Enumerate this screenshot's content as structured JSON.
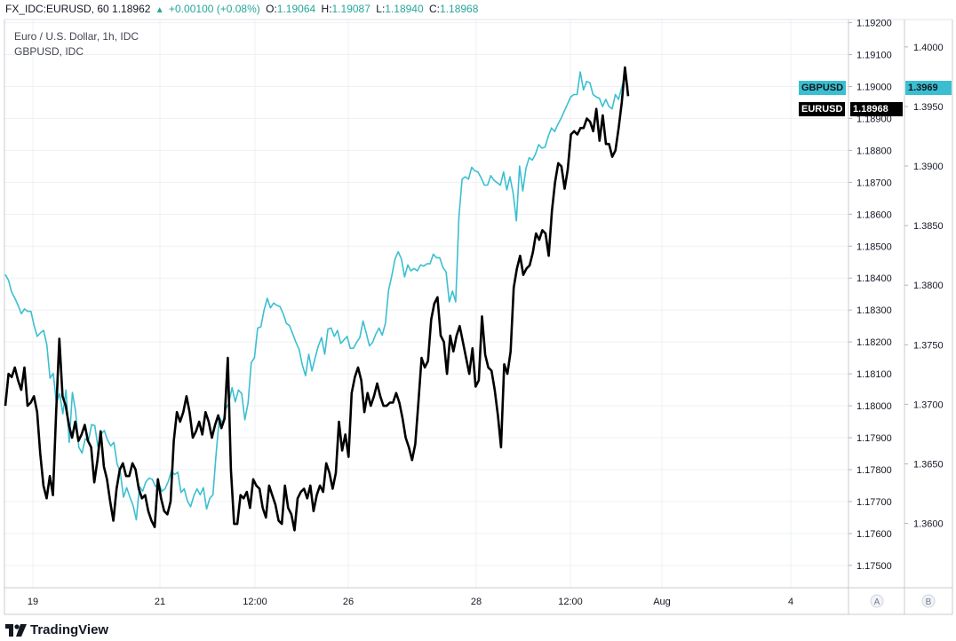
{
  "header": {
    "symbol": "FX_IDC:EURUSD, 60",
    "last": "1.18962",
    "change": "+0.00100 (+0.08%)",
    "open_label": "O:",
    "open": "1.19064",
    "high_label": "H:",
    "high": "1.19087",
    "low_label": "L:",
    "low": "1.18940",
    "close_label": "C:",
    "close": "1.18968"
  },
  "legend": {
    "main": "Euro / U.S. Dollar, 1h, IDC",
    "compare": "GBPUSD, IDC"
  },
  "tags": {
    "gbp_name": "GBPUSD",
    "gbp_value": "1.3969",
    "eur_name": "EURUSD",
    "eur_value": "1.18968"
  },
  "axis_buttons": {
    "a": "A",
    "b": "B"
  },
  "footer": {
    "brand": "TradingView"
  },
  "colors": {
    "eurusd": "#000000",
    "gbpusd": "#3bbfd0",
    "up": "#26a69a",
    "grid": "#eef0f3"
  },
  "chart_data": {
    "type": "line",
    "x_ticks": [
      "19",
      "21",
      "12:00",
      "26",
      "28",
      "12:00",
      "Aug",
      "4"
    ],
    "y_axis_left": {
      "series": "EURUSD",
      "ticks": [
        "1.19200",
        "1.19100",
        "1.19000",
        "1.18900",
        "1.18800",
        "1.18700",
        "1.18600",
        "1.18500",
        "1.18400",
        "1.18300",
        "1.18200",
        "1.18100",
        "1.18000",
        "1.17900",
        "1.17800",
        "1.17700",
        "1.17600",
        "1.17500"
      ],
      "range": [
        1.1743,
        1.1921
      ]
    },
    "y_axis_right": {
      "series": "GBPUSD",
      "ticks": [
        "1.4000",
        "1.3950",
        "1.3900",
        "1.3850",
        "1.3800",
        "1.3750",
        "1.3700",
        "1.3650",
        "1.3600"
      ],
      "range": [
        1.3546,
        1.4023
      ]
    },
    "series": [
      {
        "name": "EURUSD",
        "axis": "left",
        "color": "#000000",
        "last": 1.18968,
        "values": [
          1.18,
          1.181,
          1.1809,
          1.1812,
          1.1808,
          1.1805,
          1.1812,
          1.18,
          1.1801,
          1.1803,
          1.1798,
          1.1785,
          1.1775,
          1.1771,
          1.1778,
          1.1772,
          1.1798,
          1.1821,
          1.1803,
          1.18,
          1.1794,
          1.179,
          1.1795,
          1.1789,
          1.1791,
          1.1794,
          1.1789,
          1.1787,
          1.1776,
          1.1783,
          1.1792,
          1.1781,
          1.1777,
          1.177,
          1.1764,
          1.1774,
          1.178,
          1.1782,
          1.1778,
          1.1778,
          1.1782,
          1.178,
          1.1774,
          1.1771,
          1.1772,
          1.1767,
          1.1764,
          1.1762,
          1.1777,
          1.1771,
          1.1767,
          1.1766,
          1.177,
          1.1789,
          1.1798,
          1.1795,
          1.1798,
          1.1803,
          1.1798,
          1.179,
          1.1792,
          1.1795,
          1.1791,
          1.1798,
          1.1795,
          1.179,
          1.1794,
          1.1797,
          1.1793,
          1.1796,
          1.1815,
          1.178,
          1.1763,
          1.1763,
          1.1772,
          1.1771,
          1.1773,
          1.1768,
          1.1777,
          1.1775,
          1.1774,
          1.1768,
          1.1765,
          1.1775,
          1.1772,
          1.1769,
          1.1764,
          1.1763,
          1.1775,
          1.1768,
          1.1766,
          1.1761,
          1.1771,
          1.1773,
          1.1774,
          1.1771,
          1.1775,
          1.1767,
          1.1772,
          1.1775,
          1.1773,
          1.1782,
          1.1779,
          1.1774,
          1.1779,
          1.1795,
          1.1786,
          1.1791,
          1.1784,
          1.1804,
          1.1809,
          1.1812,
          1.1808,
          1.1798,
          1.1804,
          1.18,
          1.1803,
          1.1807,
          1.1803,
          1.18,
          1.18,
          1.1801,
          1.1801,
          1.1804,
          1.1801,
          1.1796,
          1.179,
          1.1787,
          1.1783,
          1.1788,
          1.1801,
          1.1815,
          1.1812,
          1.1814,
          1.1827,
          1.1832,
          1.1834,
          1.1822,
          1.182,
          1.181,
          1.1822,
          1.1817,
          1.1822,
          1.1825,
          1.182,
          1.1815,
          1.181,
          1.1818,
          1.1806,
          1.1808,
          1.1828,
          1.1816,
          1.1812,
          1.1811,
          1.1805,
          1.1797,
          1.1787,
          1.1813,
          1.181,
          1.1817,
          1.1837,
          1.1843,
          1.1847,
          1.1841,
          1.1843,
          1.1844,
          1.1848,
          1.1854,
          1.1852,
          1.1855,
          1.1854,
          1.1847,
          1.1861,
          1.187,
          1.1876,
          1.1875,
          1.1868,
          1.1874,
          1.1885,
          1.1886,
          1.1885,
          1.1887,
          1.1887,
          1.189,
          1.1889,
          1.1886,
          1.1893,
          1.1883,
          1.1891,
          1.1882,
          1.1882,
          1.1878,
          1.188,
          1.1887,
          1.1895,
          1.1906,
          1.1897
        ]
      },
      {
        "name": "GBPUSD",
        "axis": "right",
        "color": "#3bbfd0",
        "last": 1.3969,
        "values": [
          1.3809,
          1.3804,
          1.3794,
          1.3789,
          1.3783,
          1.3776,
          1.378,
          1.3778,
          1.3778,
          1.3766,
          1.3757,
          1.376,
          1.3762,
          1.375,
          1.3722,
          1.3726,
          1.3701,
          1.3709,
          1.3692,
          1.3712,
          1.3668,
          1.371,
          1.3694,
          1.3664,
          1.3659,
          1.3671,
          1.3669,
          1.3683,
          1.3682,
          1.3664,
          1.3675,
          1.3678,
          1.367,
          1.3665,
          1.3668,
          1.365,
          1.3643,
          1.3622,
          1.363,
          1.3622,
          1.3615,
          1.3603,
          1.3631,
          1.3627,
          1.3635,
          1.3638,
          1.3637,
          1.3631,
          1.3634,
          1.3627,
          1.3629,
          1.3635,
          1.3644,
          1.3641,
          1.3643,
          1.3626,
          1.3629,
          1.3619,
          1.3614,
          1.3623,
          1.3629,
          1.3624,
          1.363,
          1.3612,
          1.3621,
          1.3624,
          1.3659,
          1.3689,
          1.3684,
          1.3696,
          1.3701,
          1.3714,
          1.3702,
          1.3712,
          1.3709,
          1.3687,
          1.3701,
          1.3735,
          1.3739,
          1.3764,
          1.3765,
          1.3779,
          1.3789,
          1.3781,
          1.3785,
          1.3783,
          1.3782,
          1.3776,
          1.3768,
          1.3766,
          1.3759,
          1.3752,
          1.3746,
          1.3733,
          1.3724,
          1.3742,
          1.3728,
          1.3739,
          1.3749,
          1.3756,
          1.3742,
          1.3763,
          1.3764,
          1.3757,
          1.3762,
          1.3751,
          1.3754,
          1.3757,
          1.3747,
          1.3747,
          1.3752,
          1.3756,
          1.377,
          1.376,
          1.3749,
          1.3752,
          1.3759,
          1.3764,
          1.3758,
          1.3768,
          1.3796,
          1.3808,
          1.3822,
          1.3828,
          1.3822,
          1.3807,
          1.3817,
          1.3812,
          1.3814,
          1.3812,
          1.3817,
          1.3816,
          1.3818,
          1.3818,
          1.3826,
          1.3823,
          1.3823,
          1.3815,
          1.3811,
          1.3786,
          1.3795,
          1.3786,
          1.3857,
          1.3889,
          1.3891,
          1.3889,
          1.3899,
          1.3896,
          1.3895,
          1.389,
          1.3884,
          1.3884,
          1.3892,
          1.3888,
          1.3886,
          1.3884,
          1.3895,
          1.388,
          1.3891,
          1.3877,
          1.3854,
          1.39,
          1.3879,
          1.3898,
          1.3907,
          1.3905,
          1.391,
          1.3918,
          1.3915,
          1.3916,
          1.3925,
          1.3932,
          1.3929,
          1.3935,
          1.394,
          1.3946,
          1.3952,
          1.3958,
          1.396,
          1.396,
          1.3979,
          1.3964,
          1.3971,
          1.397,
          1.396,
          1.3958,
          1.3957,
          1.395,
          1.3956,
          1.395,
          1.3948,
          1.396,
          1.3956,
          1.3966,
          1.3975,
          1.3966
        ]
      }
    ]
  }
}
